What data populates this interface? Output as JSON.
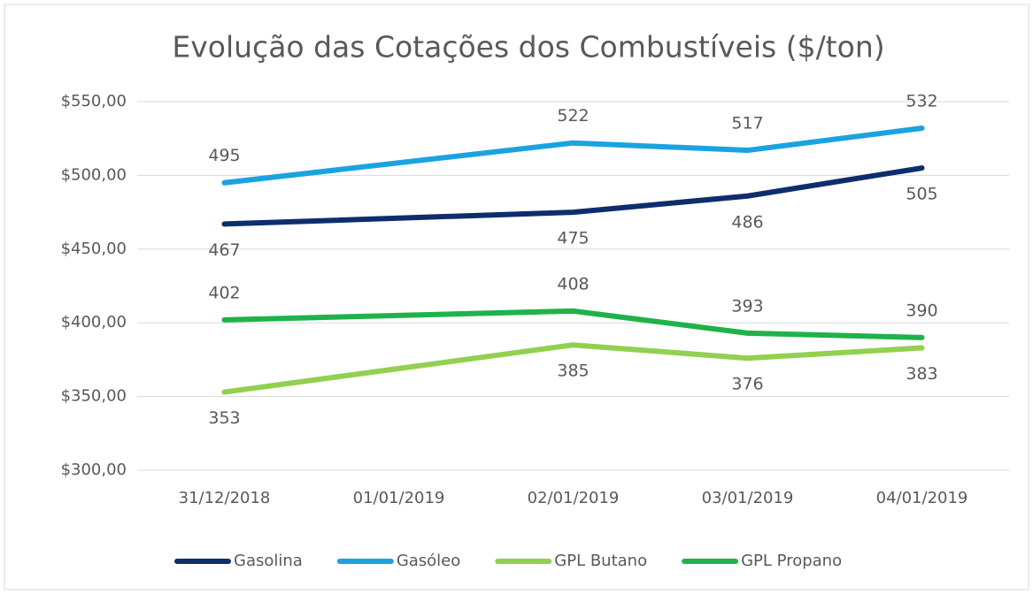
{
  "chart_data": {
    "type": "line",
    "title": "Evolução das Cotações dos Combustíveis ($/ton)",
    "categories": [
      "31/12/2018",
      "01/01/2019",
      "02/01/2019",
      "03/01/2019",
      "04/01/2019"
    ],
    "connect_gaps": true,
    "series": [
      {
        "name": "Gasolina",
        "color": "#0e2d6d",
        "label_position": "below",
        "values": [
          467,
          null,
          475,
          486,
          505
        ]
      },
      {
        "name": "Gasóleo",
        "color": "#1ba3e0",
        "label_position": "above",
        "values": [
          495,
          null,
          522,
          517,
          532
        ]
      },
      {
        "name": "GPL Butano",
        "color": "#92d050",
        "label_position": "below",
        "values": [
          353,
          null,
          385,
          376,
          383
        ]
      },
      {
        "name": "GPL Propano",
        "color": "#1fb24a",
        "label_position": "above",
        "values": [
          402,
          null,
          408,
          393,
          390
        ]
      }
    ],
    "ylim": [
      300,
      550
    ],
    "yticks": [
      {
        "value": 300,
        "label": "$300,00"
      },
      {
        "value": 350,
        "label": "$350,00"
      },
      {
        "value": 400,
        "label": "$400,00"
      },
      {
        "value": 450,
        "label": "$450,00"
      },
      {
        "value": 500,
        "label": "$500,00"
      },
      {
        "value": 550,
        "label": "$550,00"
      }
    ],
    "grid": true,
    "legend": "bottom"
  }
}
